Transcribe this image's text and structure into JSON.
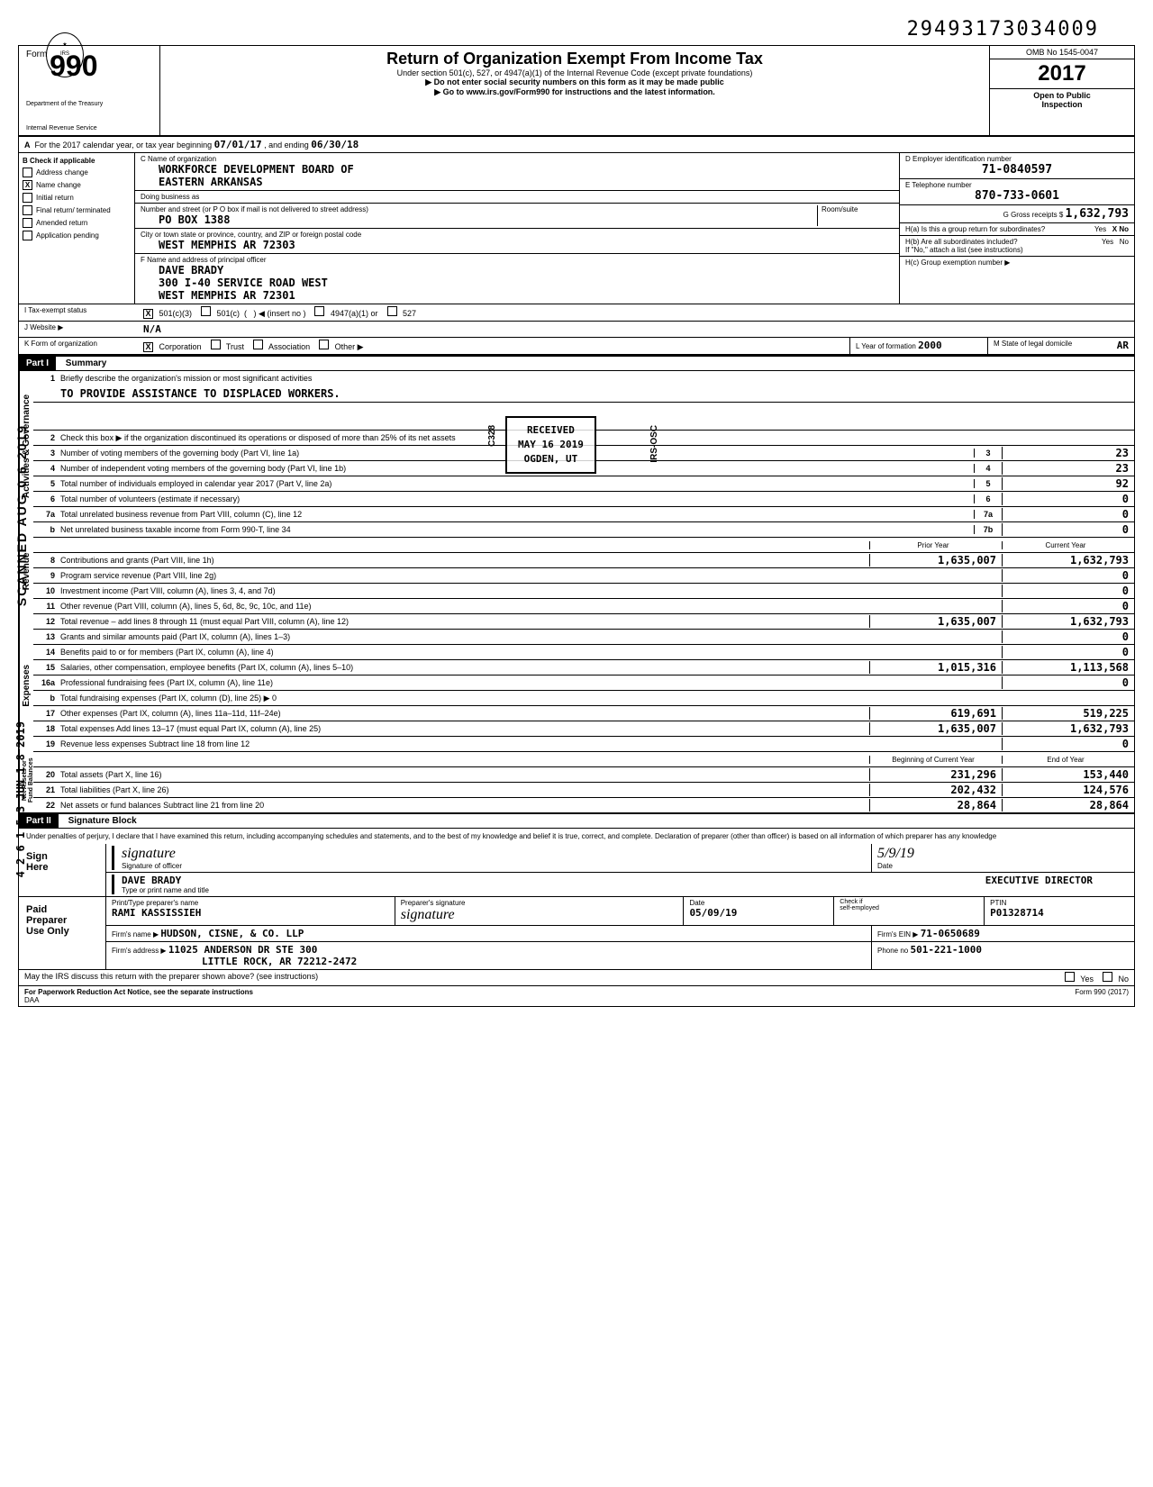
{
  "doc_number": "29493173034009",
  "form": {
    "number": "990",
    "label": "Form",
    "dept1": "Department of the Treasury",
    "dept2": "Internal Revenue Service"
  },
  "header": {
    "title": "Return of Organization Exempt From Income Tax",
    "subtitle": "Under section 501(c), 527, or 4947(a)(1) of the Internal Revenue Code (except private foundations)",
    "line1": "▶ Do not enter social security numbers on this form as it may be made public",
    "line2": "▶ Go to www.irs.gov/Form990 for instructions and the latest information."
  },
  "omb": {
    "number": "OMB No 1545-0047",
    "year": "2017",
    "open": "Open to Public",
    "inspection": "Inspection"
  },
  "row_a": {
    "text": "For the 2017 calendar year, or tax year beginning",
    "begin": "07/01/17",
    "mid": ", and ending",
    "end": "06/30/18"
  },
  "col_b": {
    "header": "B  Check if applicable",
    "items": [
      {
        "label": "Address change",
        "checked": false
      },
      {
        "label": "Name change",
        "checked": true
      },
      {
        "label": "Initial return",
        "checked": false
      },
      {
        "label": "Final return/\nterminated",
        "checked": false
      },
      {
        "label": "Amended return",
        "checked": false
      },
      {
        "label": "Application pending",
        "checked": false
      }
    ]
  },
  "col_c": {
    "name_label": "C Name of organization",
    "name1": "WORKFORCE DEVELOPMENT BOARD OF",
    "name2": "EASTERN ARKANSAS",
    "dba_label": "Doing business as",
    "addr_label": "Number and street (or P O box if mail is not delivered to street address)",
    "addr": "PO BOX 1388",
    "room_label": "Room/suite",
    "city_label": "City or town state or province, country, and ZIP or foreign postal code",
    "city": "WEST MEMPHIS          AR 72303",
    "officer_label": "F Name and address of principal officer",
    "officer_name": "DAVE BRADY",
    "officer_addr1": "300 I-40 SERVICE ROAD WEST",
    "officer_addr2": "WEST MEMPHIS          AR 72301"
  },
  "col_d": {
    "ein_label": "D Employer identification number",
    "ein": "71-0840597",
    "phone_label": "E Telephone number",
    "phone": "870-733-0601",
    "gross_label": "G Gross receipts $",
    "gross": "1,632,793",
    "h_a": "H(a) Is this a group return for subordinates?",
    "h_a_yes": "Yes",
    "h_a_no": "X No",
    "h_b": "H(b) Are all subordinates included?",
    "h_b_yes": "Yes",
    "h_b_no": "No",
    "h_b_note": "If \"No,\" attach a list (see instructions)",
    "h_c": "H(c) Group exemption number ▶"
  },
  "row_i": {
    "label": "I    Tax-exempt status",
    "opts": [
      "X 501(c)(3)",
      "501(c)",
      "(    ) ◀ (insert no )",
      "4947(a)(1) or",
      "527"
    ]
  },
  "row_j": {
    "label": "J    Website ▶",
    "val": "N/A"
  },
  "row_k": {
    "label": "K   Form of organization",
    "opts": "X Corporation    Trust    Association    Other ▶",
    "year_label": "L  Year of formation",
    "year": "2000",
    "state_label": "M  State of legal domicile",
    "state": "AR"
  },
  "part1": {
    "header": "Part I",
    "title": "Summary",
    "sections": {
      "governance": "Activities & Governance",
      "revenue": "Revenue",
      "expenses": "Expenses",
      "netassets": "Net Assets or\nFund Balances"
    },
    "line1": {
      "desc": "Briefly describe the organization's mission or most significant activities",
      "val": "TO PROVIDE ASSISTANCE TO DISPLACED WORKERS."
    },
    "line2": "Check this box ▶        if the organization discontinued its operations or disposed of more than 25% of its net assets",
    "lines_gov": [
      {
        "n": "3",
        "desc": "Number of voting members of the governing body (Part VI, line 1a)",
        "box": "3",
        "val": "23"
      },
      {
        "n": "4",
        "desc": "Number of independent voting members of the governing body (Part VI, line 1b)",
        "box": "4",
        "val": "23"
      },
      {
        "n": "5",
        "desc": "Total number of individuals employed in calendar year 2017 (Part V, line 2a)",
        "box": "5",
        "val": "92"
      },
      {
        "n": "6",
        "desc": "Total number of volunteers (estimate if necessary)",
        "box": "6",
        "val": "0"
      },
      {
        "n": "7a",
        "desc": "Total unrelated business revenue from Part VIII, column (C), line 12",
        "box": "7a",
        "val": "0"
      },
      {
        "n": "b",
        "desc": "Net unrelated business taxable income from Form 990-T, line 34",
        "box": "7b",
        "val": "0"
      }
    ],
    "col_prior": "Prior Year",
    "col_current": "Current Year",
    "lines_rev": [
      {
        "n": "8",
        "desc": "Contributions and grants (Part VIII, line 1h)",
        "prior": "1,635,007",
        "cur": "1,632,793"
      },
      {
        "n": "9",
        "desc": "Program service revenue (Part VIII, line 2g)",
        "prior": "",
        "cur": "0"
      },
      {
        "n": "10",
        "desc": "Investment income (Part VIII, column (A), lines 3, 4, and 7d)",
        "prior": "",
        "cur": "0"
      },
      {
        "n": "11",
        "desc": "Other revenue (Part VIII, column (A), lines 5, 6d, 8c, 9c, 10c, and 11e)",
        "prior": "",
        "cur": "0"
      },
      {
        "n": "12",
        "desc": "Total revenue – add lines 8 through 11 (must equal Part VIII, column (A), line 12)",
        "prior": "1,635,007",
        "cur": "1,632,793"
      }
    ],
    "lines_exp": [
      {
        "n": "13",
        "desc": "Grants and similar amounts paid (Part IX, column (A), lines 1–3)",
        "prior": "",
        "cur": "0"
      },
      {
        "n": "14",
        "desc": "Benefits paid to or for members (Part IX, column (A), line 4)",
        "prior": "",
        "cur": "0"
      },
      {
        "n": "15",
        "desc": "Salaries, other compensation, employee benefits (Part IX, column (A), lines 5–10)",
        "prior": "1,015,316",
        "cur": "1,113,568"
      },
      {
        "n": "16a",
        "desc": "Professional fundraising fees (Part IX, column (A), line 11e)",
        "prior": "",
        "cur": "0"
      },
      {
        "n": "b",
        "desc": "Total fundraising expenses (Part IX, column (D), line 25) ▶                    0",
        "prior": "shaded",
        "cur": "shaded"
      },
      {
        "n": "17",
        "desc": "Other expenses (Part IX, column (A), lines 11a–11d, 11f–24e)",
        "prior": "619,691",
        "cur": "519,225"
      },
      {
        "n": "18",
        "desc": "Total expenses  Add lines 13–17 (must equal Part IX, column (A), line 25)",
        "prior": "1,635,007",
        "cur": "1,632,793"
      },
      {
        "n": "19",
        "desc": "Revenue less expenses  Subtract line 18 from line 12",
        "prior": "",
        "cur": "0"
      }
    ],
    "col_begin": "Beginning of Current Year",
    "col_end": "End of Year",
    "lines_net": [
      {
        "n": "20",
        "desc": "Total assets (Part X, line 16)",
        "prior": "231,296",
        "cur": "153,440"
      },
      {
        "n": "21",
        "desc": "Total liabilities (Part X, line 26)",
        "prior": "202,432",
        "cur": "124,576"
      },
      {
        "n": "22",
        "desc": "Net assets or fund balances  Subtract line 21 from line 20",
        "prior": "28,864",
        "cur": "28,864"
      }
    ]
  },
  "part2": {
    "header": "Part II",
    "title": "Signature Block",
    "declaration": "Under penalties of perjury, I declare that I have examined this return, including accompanying schedules and statements, and to the best of my knowledge and belief it is true, correct, and complete. Declaration of preparer (other than officer) is based on all information of which preparer has any knowledge",
    "sign_here": "Sign\nHere",
    "sig_officer_label": "Signature of officer",
    "sig_date_label": "Date",
    "sig_date": "5/9/19",
    "officer_name": "DAVE BRADY",
    "officer_title": "EXECUTIVE DIRECTOR",
    "type_label": "Type or print name and title",
    "paid": "Paid\nPreparer\nUse Only",
    "prep_name_label": "Print/Type preparer's name",
    "prep_name": "RAMI KASSISSIEH",
    "prep_sig_label": "Preparer's signature",
    "prep_date_label": "Date",
    "prep_date": "05/09/19",
    "check_label": "Check        if\nself-employed",
    "ptin_label": "PTIN",
    "ptin": "P01328714",
    "firm_name_label": "Firm's name    ▶",
    "firm_name": "HUDSON, CISNE, & CO. LLP",
    "firm_ein_label": "Firm's EIN ▶",
    "firm_ein": "71-0650689",
    "firm_addr_label": "Firm's address  ▶",
    "firm_addr1": "11025 ANDERSON DR STE 300",
    "firm_addr2": "LITTLE ROCK, AR  72212-2472",
    "phone_label": "Phone no",
    "phone": "501-221-1000",
    "discuss": "May the IRS discuss this return with the preparer shown above? (see instructions)",
    "discuss_yes": "Yes",
    "discuss_no": "No"
  },
  "footer": {
    "left": "For Paperwork Reduction Act Notice, see the separate instructions",
    "daa": "DAA",
    "right": "Form 990 (2017)"
  },
  "stamps": {
    "scanned": "SCANNED  AUG 0 6 2019",
    "efile": "4 2 6 1 5 3 JUN 1 8 2019",
    "received": "RECEIVED\nMAY 16 2019\nOGDEN, UT",
    "irs_osc": "IRS-OSC",
    "c328": "C328"
  },
  "colors": {
    "black": "#000000",
    "white": "#ffffff",
    "shade": "#cccccc"
  }
}
